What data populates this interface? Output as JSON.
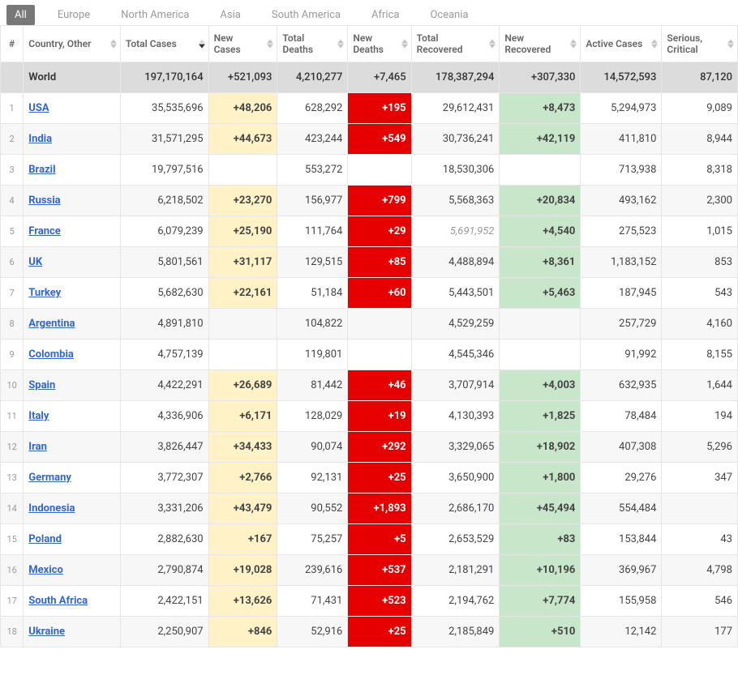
{
  "tabs": {
    "items": [
      {
        "label": "All",
        "active": true
      },
      {
        "label": "Europe",
        "active": false
      },
      {
        "label": "North America",
        "active": false
      },
      {
        "label": "Asia",
        "active": false
      },
      {
        "label": "South America",
        "active": false
      },
      {
        "label": "Africa",
        "active": false
      },
      {
        "label": "Oceania",
        "active": false
      }
    ]
  },
  "table": {
    "columns": [
      {
        "key": "idx",
        "label": "#"
      },
      {
        "key": "country",
        "label": "Country, Other"
      },
      {
        "key": "total_cases",
        "label": "Total Cases",
        "sorted": "desc"
      },
      {
        "key": "new_cases",
        "label": "New Cases"
      },
      {
        "key": "total_deaths",
        "label": "Total Deaths"
      },
      {
        "key": "new_deaths",
        "label": "New Deaths"
      },
      {
        "key": "total_recovered",
        "label": "Total Recovered"
      },
      {
        "key": "new_recovered",
        "label": "New Recovered"
      },
      {
        "key": "active_cases",
        "label": "Active Cases"
      },
      {
        "key": "serious",
        "label": "Serious, Critical"
      }
    ],
    "world": {
      "country": "World",
      "total_cases": "197,170,164",
      "new_cases": "+521,093",
      "total_deaths": "4,210,277",
      "new_deaths": "+7,465",
      "total_recovered": "178,387,294",
      "new_recovered": "+307,330",
      "active_cases": "14,572,593",
      "serious": "87,120"
    },
    "rows": [
      {
        "idx": "1",
        "country": "USA",
        "link": true,
        "total_cases": "35,535,696",
        "new_cases": "+48,206",
        "total_deaths": "628,292",
        "new_deaths": "+195",
        "total_recovered": "29,612,431",
        "new_recovered": "+8,473",
        "active_cases": "5,294,973",
        "serious": "9,089"
      },
      {
        "idx": "2",
        "country": "India",
        "link": true,
        "total_cases": "31,571,295",
        "new_cases": "+44,673",
        "total_deaths": "423,244",
        "new_deaths": "+549",
        "total_recovered": "30,736,241",
        "new_recovered": "+42,119",
        "active_cases": "411,810",
        "serious": "8,944"
      },
      {
        "idx": "3",
        "country": "Brazil",
        "link": true,
        "total_cases": "19,797,516",
        "new_cases": "",
        "total_deaths": "553,272",
        "new_deaths": "",
        "total_recovered": "18,530,306",
        "new_recovered": "",
        "active_cases": "713,938",
        "serious": "8,318"
      },
      {
        "idx": "4",
        "country": "Russia",
        "link": true,
        "total_cases": "6,218,502",
        "new_cases": "+23,270",
        "total_deaths": "156,977",
        "new_deaths": "+799",
        "total_recovered": "5,568,363",
        "new_recovered": "+20,834",
        "active_cases": "493,162",
        "serious": "2,300"
      },
      {
        "idx": "5",
        "country": "France",
        "link": true,
        "total_cases": "6,079,239",
        "new_cases": "+25,190",
        "total_deaths": "111,764",
        "new_deaths": "+29",
        "total_recovered": "5,691,952",
        "total_recovered_muted": true,
        "new_recovered": "+4,540",
        "active_cases": "275,523",
        "serious": "1,015"
      },
      {
        "idx": "6",
        "country": "UK",
        "link": true,
        "total_cases": "5,801,561",
        "new_cases": "+31,117",
        "total_deaths": "129,515",
        "new_deaths": "+85",
        "total_recovered": "4,488,894",
        "new_recovered": "+8,361",
        "active_cases": "1,183,152",
        "serious": "853"
      },
      {
        "idx": "7",
        "country": "Turkey",
        "link": true,
        "total_cases": "5,682,630",
        "new_cases": "+22,161",
        "total_deaths": "51,184",
        "new_deaths": "+60",
        "total_recovered": "5,443,501",
        "new_recovered": "+5,463",
        "active_cases": "187,945",
        "serious": "543"
      },
      {
        "idx": "8",
        "country": "Argentina",
        "link": true,
        "total_cases": "4,891,810",
        "new_cases": "",
        "total_deaths": "104,822",
        "new_deaths": "",
        "total_recovered": "4,529,259",
        "new_recovered": "",
        "active_cases": "257,729",
        "serious": "4,160"
      },
      {
        "idx": "9",
        "country": "Colombia",
        "link": true,
        "total_cases": "4,757,139",
        "new_cases": "",
        "total_deaths": "119,801",
        "new_deaths": "",
        "total_recovered": "4,545,346",
        "new_recovered": "",
        "active_cases": "91,992",
        "serious": "8,155"
      },
      {
        "idx": "10",
        "country": "Spain",
        "link": true,
        "total_cases": "4,422,291",
        "new_cases": "+26,689",
        "total_deaths": "81,442",
        "new_deaths": "+46",
        "total_recovered": "3,707,914",
        "new_recovered": "+4,003",
        "active_cases": "632,935",
        "serious": "1,644"
      },
      {
        "idx": "11",
        "country": "Italy",
        "link": true,
        "total_cases": "4,336,906",
        "new_cases": "+6,171",
        "total_deaths": "128,029",
        "new_deaths": "+19",
        "total_recovered": "4,130,393",
        "new_recovered": "+1,825",
        "active_cases": "78,484",
        "serious": "194"
      },
      {
        "idx": "12",
        "country": "Iran",
        "link": true,
        "total_cases": "3,826,447",
        "new_cases": "+34,433",
        "total_deaths": "90,074",
        "new_deaths": "+292",
        "total_recovered": "3,329,065",
        "new_recovered": "+18,902",
        "active_cases": "407,308",
        "serious": "5,296"
      },
      {
        "idx": "13",
        "country": "Germany",
        "link": true,
        "total_cases": "3,772,307",
        "new_cases": "+2,766",
        "total_deaths": "92,131",
        "new_deaths": "+25",
        "total_recovered": "3,650,900",
        "new_recovered": "+1,800",
        "active_cases": "29,276",
        "serious": "347"
      },
      {
        "idx": "14",
        "country": "Indonesia",
        "link": true,
        "total_cases": "3,331,206",
        "new_cases": "+43,479",
        "total_deaths": "90,552",
        "new_deaths": "+1,893",
        "total_recovered": "2,686,170",
        "new_recovered": "+45,494",
        "active_cases": "554,484",
        "serious": ""
      },
      {
        "idx": "15",
        "country": "Poland",
        "link": true,
        "total_cases": "2,882,630",
        "new_cases": "+167",
        "total_deaths": "75,257",
        "new_deaths": "+5",
        "total_recovered": "2,653,529",
        "new_recovered": "+83",
        "active_cases": "153,844",
        "serious": "43"
      },
      {
        "idx": "16",
        "country": "Mexico",
        "link": true,
        "total_cases": "2,790,874",
        "new_cases": "+19,028",
        "total_deaths": "239,616",
        "new_deaths": "+537",
        "total_recovered": "2,181,291",
        "new_recovered": "+10,196",
        "active_cases": "369,967",
        "serious": "4,798"
      },
      {
        "idx": "17",
        "country": "South Africa",
        "link": true,
        "total_cases": "2,422,151",
        "new_cases": "+13,626",
        "total_deaths": "71,431",
        "new_deaths": "+523",
        "total_recovered": "2,194,762",
        "new_recovered": "+7,774",
        "active_cases": "155,958",
        "serious": "546"
      },
      {
        "idx": "18",
        "country": "Ukraine",
        "link": true,
        "total_cases": "2,250,907",
        "new_cases": "+846",
        "total_deaths": "52,916",
        "new_deaths": "+25",
        "total_recovered": "2,185,849",
        "new_recovered": "+510",
        "active_cases": "12,142",
        "serious": "177"
      }
    ],
    "colors": {
      "new_cases_bg": "#fff2c6",
      "new_deaths_bg": "#e60000",
      "new_deaths_fg": "#ffffff",
      "new_recovered_bg": "#c8e6c9",
      "world_row_bg": "#dcdcdc",
      "link_color": "#3366cc",
      "border_color": "#e6e6e6"
    }
  }
}
